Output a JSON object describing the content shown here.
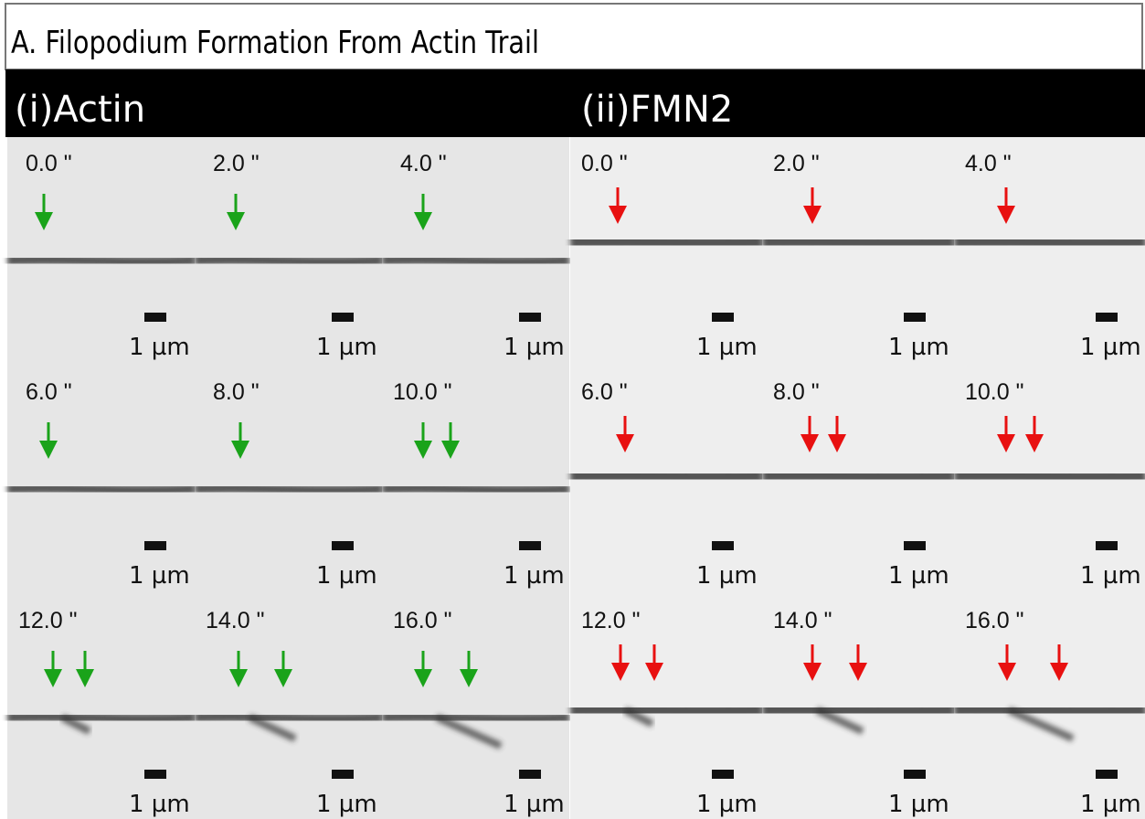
{
  "title": "A. Filopodium Formation From Actin Trail",
  "panels": [
    {
      "label": "(i)Actin",
      "frames": [
        {
          "time": "0.0 \"",
          "scale": "1 µm"
        },
        {
          "time": "2.0 \"",
          "scale": "1 µm"
        },
        {
          "time": "4.0 \"",
          "scale": "1 µm"
        },
        {
          "time": "6.0 \"",
          "scale": "1 µm"
        },
        {
          "time": "8.0 \"",
          "scale": "1 µm"
        },
        {
          "time": "10.0 \"",
          "scale": "1 µm"
        },
        {
          "time": "12.0 \"",
          "scale": "1 µm"
        },
        {
          "time": "14.0 \"",
          "scale": "1 µm"
        },
        {
          "time": "16.0 \"",
          "scale": "1 µm"
        }
      ]
    },
    {
      "label": "(ii)FMN2",
      "frames": [
        {
          "time": "0.0 \"",
          "scale": "1 µm"
        },
        {
          "time": "2.0 \"",
          "scale": "1 µm"
        },
        {
          "time": "4.0 \"",
          "scale": "1 µm"
        },
        {
          "time": "6.0 \"",
          "scale": "1 µm"
        },
        {
          "time": "8.0 \"",
          "scale": "1 µm"
        },
        {
          "time": "10.0 \"",
          "scale": "1 µm"
        },
        {
          "time": "12.0 \"",
          "scale": "1 µm"
        },
        {
          "time": "14.0 \"",
          "scale": "1 µm"
        },
        {
          "time": "16.0 \"",
          "scale": "1 µm"
        }
      ]
    }
  ]
}
